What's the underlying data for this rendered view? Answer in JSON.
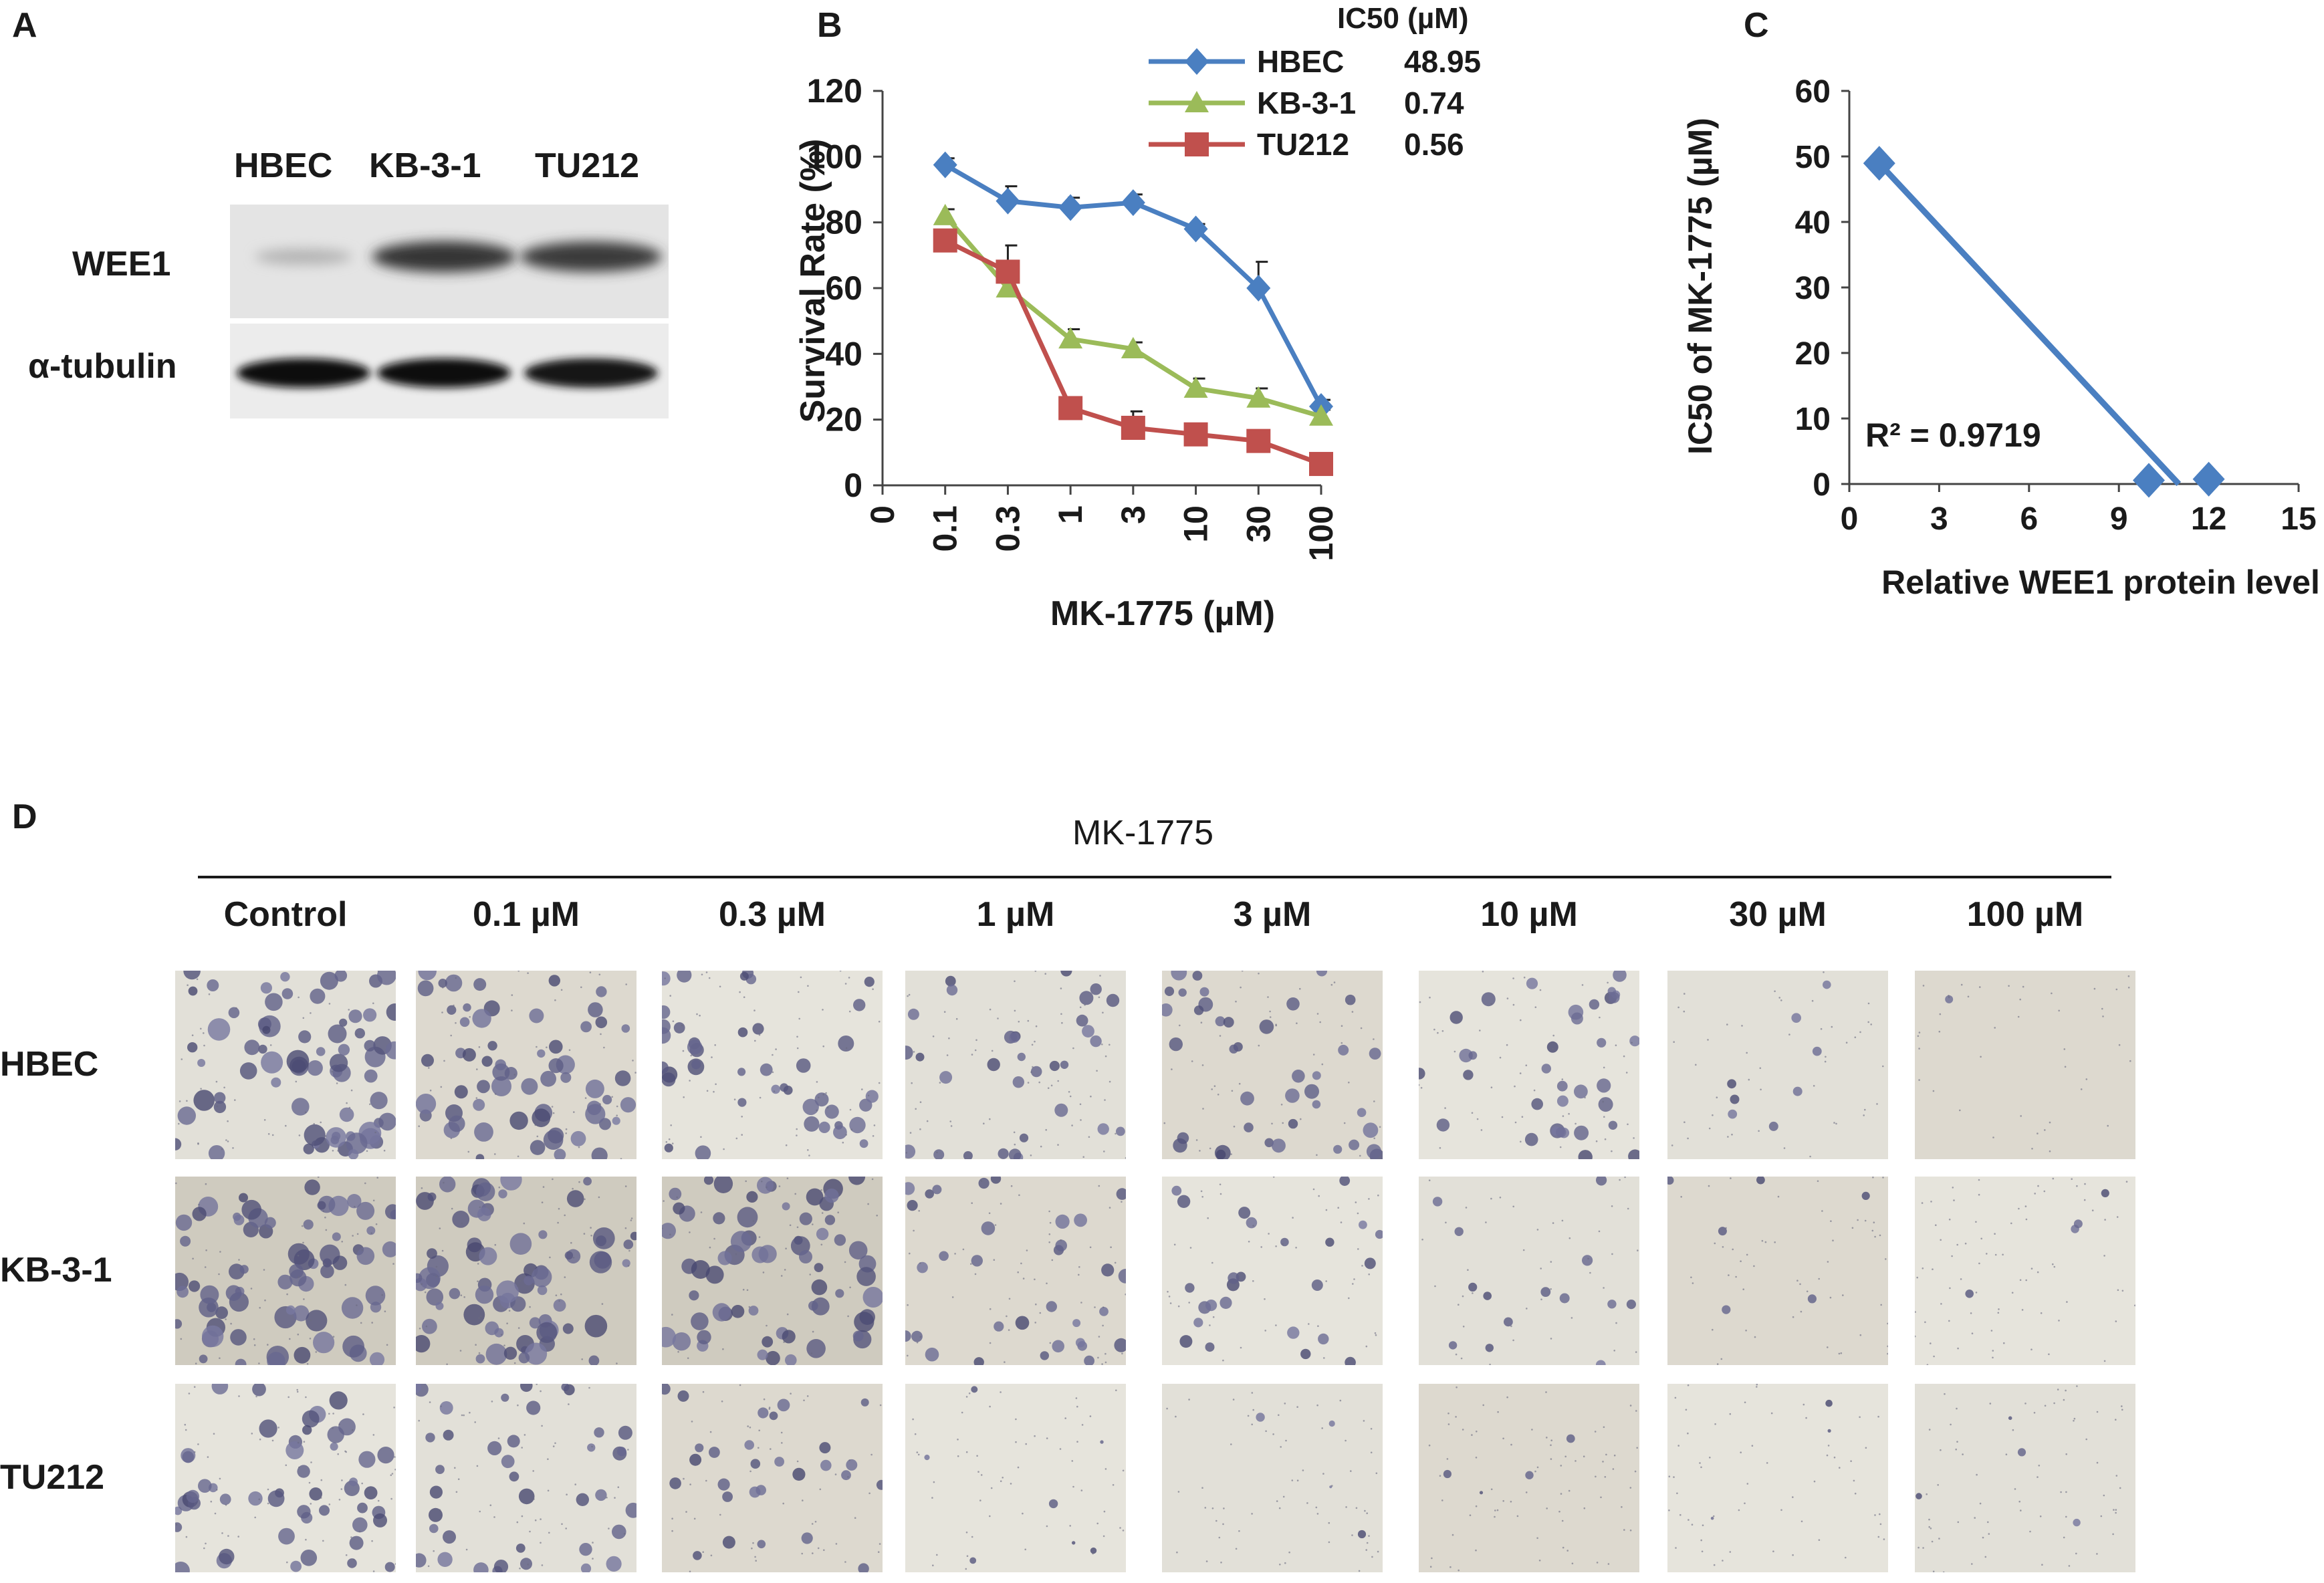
{
  "panels": {
    "a": "A",
    "b": "B",
    "c": "C",
    "d": "D"
  },
  "western_blot": {
    "lanes": [
      "HBEC",
      "KB-3-1",
      "TU212"
    ],
    "proteins": [
      "WEE1",
      "α-tubulin"
    ],
    "wee1_intensity": [
      0.25,
      0.95,
      0.92
    ],
    "tubulin_intensity": [
      1.0,
      1.0,
      0.98
    ]
  },
  "chart_data": [
    {
      "type": "line",
      "panel": "B",
      "ylabel": "Survival  Rate (%)",
      "xlabel": "MK-1775 (µM)",
      "categories": [
        "0",
        "0.1",
        "0.3",
        "1",
        "3",
        "10",
        "30",
        "100"
      ],
      "ylim": [
        0,
        120
      ],
      "yticks": [
        0,
        20,
        40,
        60,
        80,
        100,
        120
      ],
      "legend_title": "IC50 (µM)",
      "legend_position": "top",
      "series": [
        {
          "name": "HBEC",
          "ic50": "48.95",
          "color": "#4a7fc1",
          "marker": "diamond",
          "values": [
            null,
            97.5,
            86.5,
            84.5,
            86,
            78,
            60,
            24
          ],
          "err": [
            null,
            2,
            4.5,
            3,
            2.5,
            1.5,
            8,
            2
          ]
        },
        {
          "name": "KB-3-1",
          "ic50": "0.74",
          "color": "#9bbb59",
          "marker": "triangle",
          "values": [
            null,
            82,
            60,
            44.5,
            41.5,
            29.5,
            26.5,
            21
          ],
          "err": [
            null,
            2,
            3,
            3,
            2,
            3,
            3,
            2
          ]
        },
        {
          "name": "TU212",
          "ic50": "0.56",
          "color": "#c0504d",
          "marker": "square",
          "values": [
            null,
            74.5,
            65,
            23.5,
            17.5,
            15.5,
            13.5,
            6.5
          ],
          "err": [
            null,
            3,
            8,
            2,
            5,
            1,
            1,
            1
          ]
        }
      ]
    },
    {
      "type": "scatter",
      "panel": "C",
      "ylabel": "IC50 of MK-1775 (µM)",
      "xlabel": "Relative WEE1 protein level",
      "xlim": [
        0,
        15
      ],
      "ylim": [
        0,
        60
      ],
      "xticks": [
        0,
        3,
        6,
        9,
        12,
        15
      ],
      "yticks": [
        0,
        10,
        20,
        30,
        40,
        50,
        60
      ],
      "annotation": "R² = 0.9719",
      "color": "#4a7fc1",
      "points": [
        {
          "x": 1.0,
          "y": 48.95
        },
        {
          "x": 10.0,
          "y": 0.56
        },
        {
          "x": 12.0,
          "y": 0.74
        }
      ],
      "fit_line": {
        "x": [
          1.0,
          11.0
        ],
        "y": [
          48.95,
          0
        ]
      }
    }
  ],
  "microscopy": {
    "treatment": "MK-1775",
    "conditions": [
      "Control",
      "0.1 µM",
      "0.3 µM",
      "1 µM",
      "3 µM",
      "10 µM",
      "30 µM",
      "100 µM"
    ],
    "cell_lines": [
      "HBEC",
      "KB-3-1",
      "TU212"
    ],
    "colony_density": [
      [
        1.0,
        0.85,
        0.6,
        0.45,
        0.55,
        0.5,
        0.12,
        0.02
      ],
      [
        1.0,
        1.0,
        0.9,
        0.45,
        0.35,
        0.2,
        0.08,
        0.05
      ],
      [
        0.7,
        0.55,
        0.4,
        0.1,
        0.06,
        0.05,
        0.04,
        0.05
      ]
    ]
  }
}
